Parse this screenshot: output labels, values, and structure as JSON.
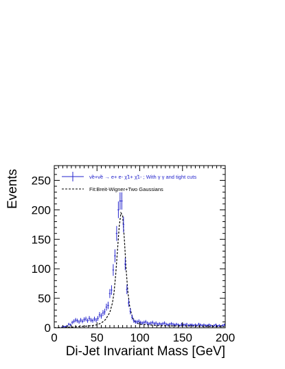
{
  "chart_data": {
    "type": "scatter",
    "title": "",
    "xlabel": "Di-Jet Invariant Mass [GeV]",
    "ylabel": "Events",
    "xlim": [
      0,
      200
    ],
    "ylim": [
      0,
      275
    ],
    "x_ticks": [
      "0",
      "50",
      "100",
      "150",
      "200"
    ],
    "y_ticks": [
      "0",
      "50",
      "100",
      "150",
      "200",
      "250"
    ],
    "grid": false,
    "legend_position": "top-left",
    "series": [
      {
        "name": "ν̃e+ν̃e → e+ e- χ̃1+ χ̃1- ; With γ γ and tight cuts",
        "style": "points-with-errors",
        "color": "#2222cc",
        "x": [
          9,
          11,
          13,
          15,
          17,
          19,
          21,
          23,
          25,
          27,
          29,
          31,
          33,
          35,
          37,
          39,
          41,
          43,
          45,
          47,
          49,
          51,
          53,
          55,
          57,
          59,
          61,
          63,
          65,
          67,
          69,
          71,
          73,
          75,
          77,
          79,
          81,
          83,
          85,
          87,
          89,
          91,
          93,
          95,
          97,
          99,
          101,
          103,
          105,
          107,
          109,
          111,
          113,
          115,
          117,
          119,
          121,
          123,
          125,
          127,
          129,
          131,
          133,
          135,
          137,
          139,
          141,
          143,
          145,
          147,
          149,
          151,
          153,
          155,
          157,
          159,
          161,
          163,
          165,
          167,
          169,
          171,
          173,
          175,
          177,
          179,
          181,
          183,
          185,
          187,
          189,
          191,
          193,
          195,
          197,
          199
        ],
        "y": [
          1,
          2,
          2,
          3,
          6,
          5,
          9,
          11,
          13,
          12,
          10,
          13,
          11,
          14,
          15,
          12,
          16,
          13,
          12,
          15,
          13,
          16,
          22,
          20,
          25,
          27,
          35,
          38,
          58,
          64,
          98,
          122,
          160,
          200,
          215,
          215,
          175,
          108,
          65,
          42,
          28,
          18,
          12,
          10,
          10,
          11,
          9,
          8,
          9,
          10,
          8,
          7,
          8,
          9,
          7,
          8,
          6,
          7,
          6,
          7,
          8,
          6,
          5,
          6,
          7,
          6,
          5,
          6,
          5,
          4,
          6,
          5,
          5,
          6,
          4,
          5,
          5,
          4,
          5,
          4,
          6,
          5,
          4,
          5,
          4,
          4,
          5,
          4,
          3,
          4,
          5,
          3,
          4,
          3,
          4,
          5
        ]
      },
      {
        "name": "Fit:Breit-Wigner+Two Gaussians",
        "style": "dashed-line",
        "color": "#000000",
        "x": [
          0,
          10,
          20,
          30,
          40,
          50,
          55,
          60,
          65,
          68,
          70,
          72,
          74,
          76,
          78,
          80,
          82,
          84,
          86,
          88,
          90,
          92,
          95,
          100,
          110,
          120,
          140,
          160,
          180,
          200
        ],
        "y": [
          0,
          1,
          1,
          2,
          3,
          5,
          8,
          14,
          26,
          42,
          60,
          92,
          132,
          172,
          195,
          190,
          150,
          100,
          62,
          38,
          25,
          16,
          9,
          6,
          5,
          4,
          3,
          3,
          2,
          2
        ]
      }
    ]
  }
}
